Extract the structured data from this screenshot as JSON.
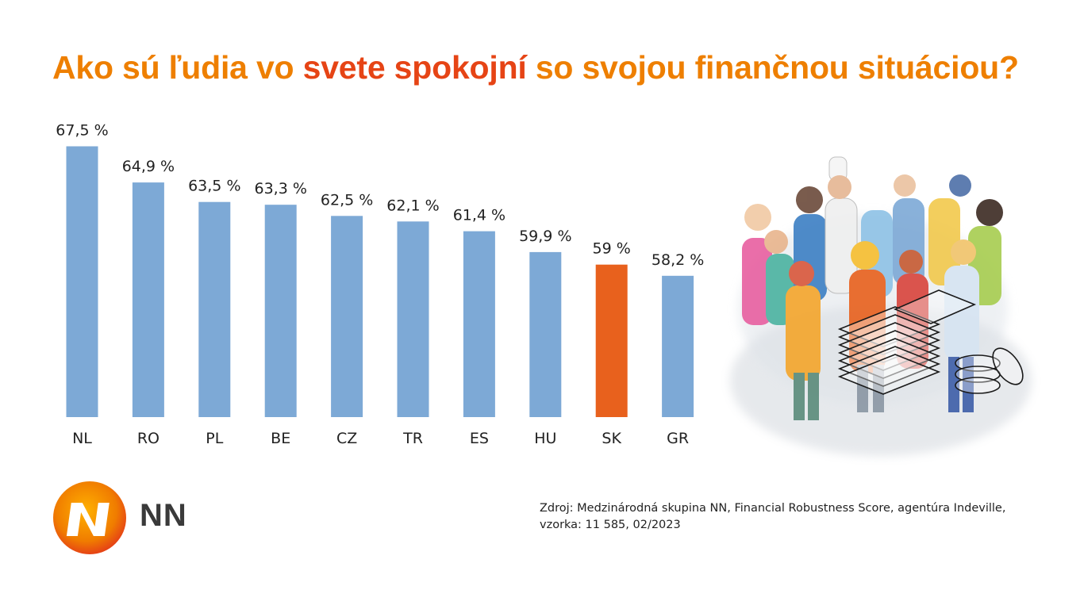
{
  "title": {
    "part1": "Ako sú ľudia vo ",
    "accent": "svete spokojní",
    "part2": " so svojou finančnou situáciou?"
  },
  "colors": {
    "title": "#EE7F00",
    "title_accent": "#E64415",
    "bar": "#7DA9D6",
    "bar_highlight": "#E8611D"
  },
  "chart_data": {
    "type": "bar",
    "categories": [
      "NL",
      "RO",
      "PL",
      "BE",
      "CZ",
      "TR",
      "ES",
      "HU",
      "SK",
      "GR"
    ],
    "values": [
      67.5,
      64.9,
      63.5,
      63.3,
      62.5,
      62.1,
      61.4,
      59.9,
      59,
      58.2
    ],
    "value_labels": [
      "67,5 %",
      "64,9 %",
      "63,5 %",
      "63,3 %",
      "62,5 %",
      "62,1 %",
      "61,4 %",
      "59,9 %",
      "59 %",
      "58,2 %"
    ],
    "highlight_category": "SK",
    "grid": false,
    "legend": "none"
  },
  "logo": {
    "text": "NN",
    "icon": "nn-logo-icon"
  },
  "illustration": {
    "icon": "people-crowd-illustration"
  },
  "source": {
    "line1": "Zdroj: Medzinárodná skupina NN, Financial Robustness Score, agentúra Indeville,",
    "line2": "vzorka: 11 585, 02/2023"
  }
}
